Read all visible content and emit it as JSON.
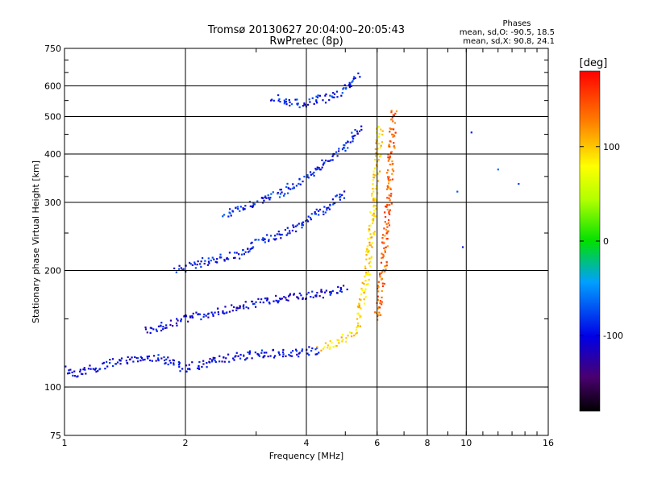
{
  "chart_data": {
    "type": "scatter",
    "title": "Tromsø 20130627 20:04:00–20:05:43",
    "subtitle": "RwPretec (8p)",
    "xlabel": "Frequency [MHz]",
    "ylabel": "Stationary phase Virtual Height [km]",
    "xscale": "log",
    "yscale": "log",
    "xlim": [
      1,
      16
    ],
    "ylim": [
      75,
      750
    ],
    "x_ticks": [
      1,
      2,
      4,
      6,
      8,
      10,
      16
    ],
    "x_tick_labels": [
      "1",
      "2",
      "4",
      "6",
      "8",
      "10",
      "16"
    ],
    "y_ticks": [
      75,
      100,
      200,
      300,
      400,
      500,
      600,
      750
    ],
    "y_tick_labels": [
      "75",
      "100",
      "200",
      "300",
      "400",
      "500",
      "600",
      "750"
    ],
    "grid": true,
    "colorbar": {
      "label": "[deg]",
      "ticks": [
        100,
        0,
        -100
      ],
      "tick_labels": [
        "100",
        "0",
        "-100"
      ],
      "range": [
        -180,
        180
      ],
      "colormap": "rainbow"
    },
    "phase_info": {
      "title": "Phases",
      "line_o": "mean, sd,O: -90.5, 18.5",
      "line_x": "mean, sd,X: 90.8, 24.1"
    },
    "traces": [
      {
        "name": "",
        "x": [
          1.0,
          1.05,
          1.1,
          1.2,
          1.3,
          1.5,
          1.7,
          2.0,
          2.3,
          2.7,
          3.2,
          3.6,
          4.0,
          4.3
        ],
        "y": [
          112,
          108,
          110,
          112,
          115,
          118,
          120,
          112,
          116,
          120,
          122,
          122,
          124,
          124
        ],
        "phase": -100
      },
      {
        "name": "",
        "x": [
          4.3,
          4.5,
          4.7,
          4.9,
          5.1,
          5.3,
          5.5
        ],
        "y": [
          126,
          128,
          130,
          133,
          136,
          140,
          145
        ],
        "phase": 95
      },
      {
        "name": "",
        "x": [
          5.4,
          5.5,
          5.6,
          5.7,
          5.8,
          5.9,
          6.0,
          6.1
        ],
        "y": [
          150,
          165,
          180,
          210,
          250,
          300,
          380,
          470
        ],
        "phase": 95
      },
      {
        "name": "",
        "x": [
          6.0,
          6.2,
          6.4,
          6.5,
          6.6
        ],
        "y": [
          150,
          200,
          300,
          400,
          520
        ],
        "phase": 140
      },
      {
        "name": "",
        "x": [
          1.6,
          2.0,
          2.5,
          3.0,
          3.5,
          4.0,
          4.5,
          5.0
        ],
        "y": [
          140,
          150,
          158,
          165,
          170,
          172,
          175,
          180
        ],
        "phase": -105
      },
      {
        "name": "",
        "x": [
          1.9,
          2.2,
          2.7,
          3.0,
          3.5,
          4.0,
          4.5,
          5.0
        ],
        "y": [
          200,
          210,
          220,
          235,
          250,
          270,
          290,
          320
        ],
        "phase": -95
      },
      {
        "name": "",
        "x": [
          2.5,
          3.0,
          3.5,
          4.0,
          4.5,
          5.0,
          5.5
        ],
        "y": [
          280,
          300,
          320,
          350,
          380,
          420,
          470
        ],
        "phase": -90
      },
      {
        "name": "",
        "x": [
          3.3,
          3.6,
          3.9,
          4.2,
          4.5,
          4.8,
          5.1,
          5.4
        ],
        "y": [
          560,
          545,
          540,
          548,
          560,
          575,
          600,
          640
        ],
        "phase": -90
      },
      {
        "name": "",
        "x": [
          9.5,
          9.8,
          10.3,
          12.0,
          13.5
        ],
        "y": [
          320,
          230,
          455,
          365,
          335
        ],
        "phase": -80
      }
    ]
  }
}
